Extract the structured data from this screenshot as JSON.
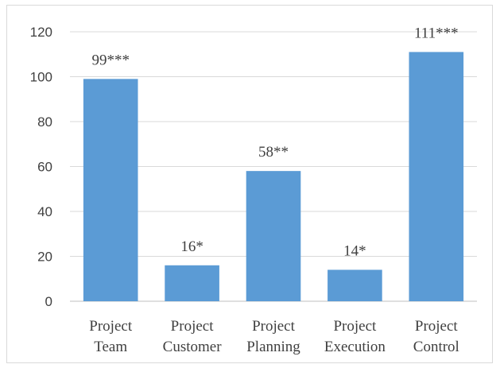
{
  "chart_data": {
    "type": "bar",
    "categories": [
      [
        "Project",
        "Team"
      ],
      [
        "Project",
        "Customer"
      ],
      [
        "Project",
        "Planning"
      ],
      [
        "Project",
        "Execution"
      ],
      [
        "Project",
        "Control"
      ]
    ],
    "values": [
      99,
      16,
      58,
      14,
      111
    ],
    "data_labels": [
      "99***",
      "16*",
      "58**",
      "14*",
      "111***"
    ],
    "title": "",
    "xlabel": "",
    "ylabel": "",
    "ylim": [
      0,
      120
    ],
    "yticks": [
      0,
      20,
      40,
      60,
      80,
      100,
      120
    ],
    "grid": true,
    "bar_color": "#5b9bd5"
  }
}
